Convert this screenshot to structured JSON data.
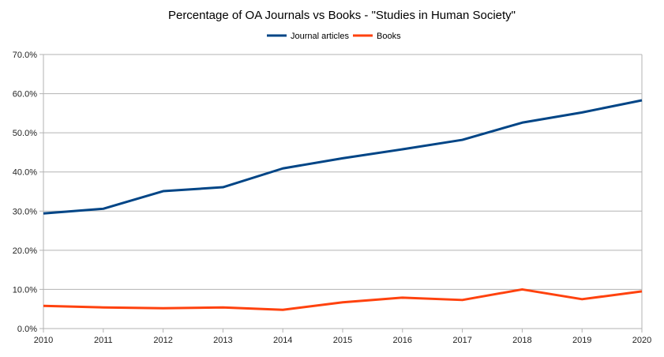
{
  "chart_data": {
    "type": "line",
    "title": "Percentage of OA Journals vs Books - \"Studies in Human Society\"",
    "xlabel": "",
    "ylabel": "",
    "x": [
      2010,
      2011,
      2012,
      2013,
      2014,
      2015,
      2016,
      2017,
      2018,
      2019,
      2020
    ],
    "ylim": [
      0,
      70
    ],
    "yticks": [
      "0.0%",
      "10.0%",
      "20.0%",
      "30.0%",
      "40.0%",
      "50.0%",
      "60.0%",
      "70.0%"
    ],
    "grid": true,
    "legend": "top",
    "series": [
      {
        "name": "Journal articles",
        "color": "#004586",
        "values": [
          29.4,
          30.6,
          35.1,
          36.1,
          40.9,
          43.5,
          45.8,
          48.2,
          52.6,
          55.2,
          58.3
        ]
      },
      {
        "name": "Books",
        "color": "#ff420e",
        "values": [
          5.8,
          5.4,
          5.2,
          5.4,
          4.8,
          6.7,
          7.9,
          7.3,
          10.0,
          7.5,
          9.5
        ]
      }
    ]
  }
}
